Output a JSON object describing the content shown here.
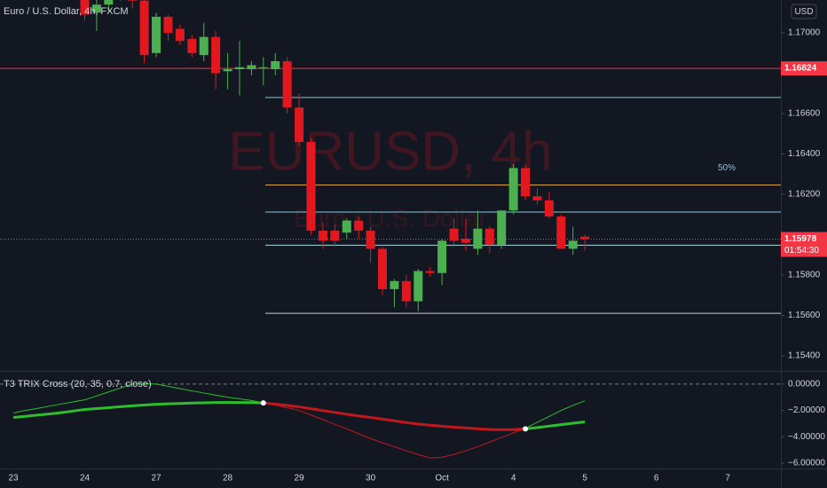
{
  "chart_data": [
    {
      "type": "candlestick",
      "title": "Euro / U.S. Dollar, 4h, FXCM",
      "currency": "USD",
      "watermark": "EURUSD, 4h",
      "watermark_sub": "Euro / U.S. Dollar",
      "up_color": "#4caf50",
      "down_color": "#e3181f",
      "categories": [
        "23",
        null,
        null,
        null,
        null,
        null,
        "24",
        null,
        null,
        null,
        null,
        null,
        "27",
        null,
        null,
        null,
        null,
        null,
        "28",
        null,
        null,
        null,
        null,
        null,
        "29",
        null,
        null,
        null,
        null,
        null,
        "30",
        null,
        null,
        null,
        null,
        null,
        "Oct",
        null,
        null,
        null,
        null,
        null,
        "4",
        null,
        null,
        null,
        null,
        null,
        "5",
        null,
        null,
        null,
        null,
        null,
        "6",
        null,
        null,
        null,
        null,
        null,
        "7",
        null,
        null,
        null,
        null
      ],
      "open": [
        null,
        null,
        null,
        null,
        null,
        null,
        1.172,
        1.171,
        1.1714,
        1.172,
        1.1724,
        1.1716,
        1.169,
        1.1708,
        1.1702,
        1.1697,
        1.1689,
        1.1698,
        1.1681,
        1.1682,
        1.1682,
        1.1683,
        1.1682,
        1.1686,
        1.1663,
        1.1646,
        1.1602,
        1.1602,
        1.1601,
        1.1607,
        1.1602,
        1.1593,
        1.1573,
        1.1577,
        1.1567,
        1.1582,
        1.1581,
        1.1603,
        1.1598,
        1.1593,
        1.1603,
        1.1595,
        1.1612,
        1.1633,
        1.1619,
        1.1617,
        1.1609,
        1.1593,
        1.1599,
        null,
        null,
        null,
        null,
        null,
        null,
        null,
        null,
        null,
        null,
        null,
        null,
        null,
        null,
        null,
        null
      ],
      "high": [
        null,
        null,
        null,
        null,
        null,
        null,
        1.1722,
        1.1718,
        1.1725,
        1.1728,
        1.1727,
        1.1718,
        1.171,
        1.1709,
        1.1704,
        1.1699,
        1.1705,
        1.1701,
        1.169,
        1.1696,
        1.1686,
        1.1688,
        1.169,
        1.1688,
        1.167,
        1.1648,
        1.1606,
        1.1605,
        1.1608,
        1.1609,
        1.1604,
        1.1594,
        1.1578,
        1.158,
        1.1583,
        1.1584,
        1.1598,
        1.1608,
        1.1608,
        1.1612,
        1.1604,
        1.1612,
        1.1635,
        1.1635,
        1.1623,
        1.1621,
        1.161,
        1.1604,
        1.16,
        null,
        null,
        null,
        null,
        null,
        null,
        null,
        null,
        null,
        null,
        null,
        null,
        null,
        null,
        null,
        null
      ],
      "low": [
        null,
        null,
        null,
        null,
        null,
        null,
        1.1706,
        1.1701,
        1.171,
        1.1716,
        1.1712,
        1.1685,
        1.1688,
        1.1696,
        1.1694,
        1.1688,
        1.1686,
        1.1672,
        1.1672,
        1.1669,
        1.1679,
        1.1674,
        1.1679,
        1.166,
        1.1644,
        1.16,
        1.1593,
        1.1594,
        1.1598,
        1.1598,
        1.1586,
        1.157,
        1.1564,
        1.1564,
        1.1562,
        1.1579,
        1.1575,
        1.1594,
        1.1592,
        1.159,
        1.1591,
        1.1593,
        1.161,
        1.1617,
        1.1615,
        1.1608,
        1.1593,
        1.159,
        1.1592,
        null,
        null,
        null,
        null,
        null,
        null,
        null,
        null,
        null,
        null,
        null,
        null,
        null,
        null,
        null,
        null
      ],
      "close": [
        null,
        null,
        null,
        null,
        null,
        null,
        1.1709,
        1.1714,
        1.172,
        1.1724,
        1.1716,
        1.1689,
        1.1708,
        1.17,
        1.1696,
        1.169,
        1.1698,
        1.168,
        1.1682,
        1.1683,
        1.1684,
        1.1683,
        1.1686,
        1.1663,
        1.1646,
        1.1602,
        1.1597,
        1.1597,
        1.1607,
        1.1602,
        1.1593,
        1.1573,
        1.1577,
        1.1567,
        1.1582,
        1.1581,
        1.1597,
        1.1597,
        1.1596,
        1.1603,
        1.1595,
        1.1612,
        1.1633,
        1.1619,
        1.1617,
        1.1609,
        1.1593,
        1.1597,
        1.15978,
        null,
        null,
        null,
        null,
        null,
        null,
        null,
        null,
        null,
        null,
        null,
        null,
        null,
        null,
        null,
        null
      ],
      "ylim": [
        1.15325,
        1.17163
      ],
      "yticks": [
        {
          "value": 1.154,
          "label": "1.15400"
        },
        {
          "value": 1.156,
          "label": "1.15600"
        },
        {
          "value": 1.158,
          "label": "1.15800"
        },
        {
          "value": 1.162,
          "label": "1.16200"
        },
        {
          "value": 1.164,
          "label": "1.16400"
        },
        {
          "value": 1.166,
          "label": "1.16600"
        },
        {
          "value": 1.17,
          "label": "1.17000"
        }
      ],
      "alert_line": {
        "value": 1.16824,
        "color": "#f23645"
      },
      "last_price": {
        "value": 1.15978,
        "countdown": "01:54:30",
        "color": "#f23645"
      },
      "fib_levels": [
        {
          "value": 1.1668,
          "color": "#7fc8d6"
        },
        {
          "value": 1.16246,
          "color": "#d9a441",
          "label": "50%"
        },
        {
          "value": 1.16112,
          "color": "#7fc8d6"
        },
        {
          "value": 1.15948,
          "color": "#a8d8e0"
        },
        {
          "value": 1.1561,
          "color": "#c8d0d8"
        }
      ]
    },
    {
      "type": "line",
      "title": "T3 TRIX Cross (20, 35, 0.7, close)",
      "up_color": "#2ebd2e",
      "down_color": "#c0181c",
      "marker_color": "#ffffff",
      "series": [
        {
          "width": 3,
          "values": [
            -2.53,
            -2.45,
            -2.36,
            -2.27,
            -2.17,
            -2.05,
            -1.93,
            -1.86,
            -1.79,
            -1.72,
            -1.65,
            -1.59,
            -1.53,
            -1.5,
            -1.47,
            -1.44,
            -1.42,
            -1.4,
            -1.4,
            -1.4,
            -1.41,
            -1.43,
            -1.52,
            -1.62,
            -1.73,
            -1.87,
            -2.01,
            -2.15,
            -2.29,
            -2.42,
            -2.53,
            -2.66,
            -2.79,
            -2.92,
            -3.03,
            -3.12,
            -3.2,
            -3.27,
            -3.33,
            -3.39,
            -3.44,
            -3.47,
            -3.45,
            -3.4,
            -3.3,
            -3.19,
            -3.08,
            -2.97,
            -2.87,
            null,
            null,
            null,
            null,
            null,
            null,
            null,
            null,
            null,
            null,
            null,
            null,
            null,
            null,
            null,
            null
          ]
        },
        {
          "width": 1,
          "values": [
            -2.2,
            -2.0,
            -1.85,
            -1.68,
            -1.52,
            -1.36,
            -1.2,
            -0.9,
            -0.6,
            -0.3,
            0.0,
            0.02,
            0.0,
            -0.17,
            -0.35,
            -0.52,
            -0.68,
            -0.84,
            -1.0,
            -1.12,
            -1.25,
            -1.42,
            -1.6,
            -1.8,
            -2.0,
            -2.35,
            -2.7,
            -3.05,
            -3.4,
            -3.77,
            -4.13,
            -4.45,
            -4.75,
            -5.05,
            -5.35,
            -5.6,
            -5.55,
            -5.33,
            -5.05,
            -4.75,
            -4.4,
            -4.05,
            -3.7,
            -3.35,
            -2.9,
            -2.45,
            -2.0,
            -1.62,
            -1.27,
            null,
            null,
            null,
            null,
            null,
            null,
            null,
            null,
            null,
            null,
            null,
            null,
            null,
            null,
            null,
            null
          ]
        }
      ],
      "hlines": [
        0
      ],
      "ylim": [
        -6.4,
        0.93
      ],
      "yticks": [
        {
          "value": 0,
          "label": "0.00000"
        },
        {
          "value": -2,
          "label": "−2.00000"
        },
        {
          "value": -4,
          "label": "−4.00000"
        },
        {
          "value": -6,
          "label": "−6.00000"
        }
      ]
    }
  ]
}
